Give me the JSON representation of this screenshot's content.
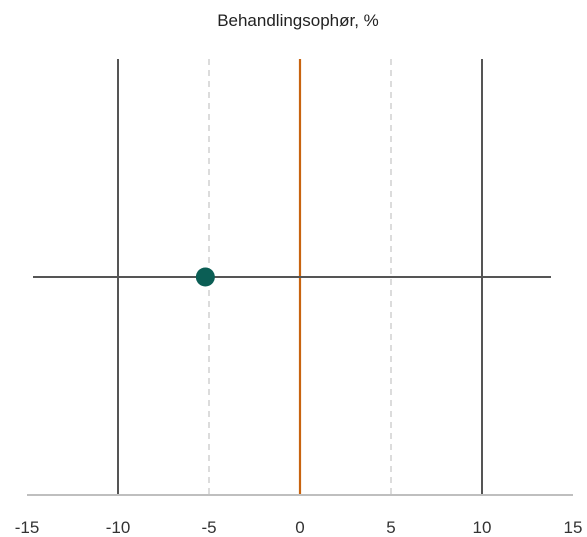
{
  "chart_data": {
    "type": "scatter",
    "title": "Behandlingsophør, %",
    "xlabel": "",
    "ylabel": "",
    "xlim": [
      -15,
      15
    ],
    "x_ticks": [
      "-15",
      "-10",
      "-5",
      "0",
      "5",
      "10",
      "15"
    ],
    "x_tick_values": [
      -15,
      -10,
      -5,
      0,
      5,
      10,
      15
    ],
    "reference_lines": {
      "solid_gray_x": [
        -10,
        10
      ],
      "dashed_gray_x": [
        -5,
        5
      ],
      "orange_x": [
        0
      ]
    },
    "points": [
      {
        "x": -5.2,
        "y": 0
      }
    ],
    "grid": false,
    "legend": "none",
    "colors": {
      "point": "#0b5e55",
      "zero_line": "#c8640f",
      "solid_lines": "#555555",
      "dashed_lines": "#d4d4d4",
      "axis": "#bfbfbf",
      "horizontal_line": "#555555"
    }
  }
}
